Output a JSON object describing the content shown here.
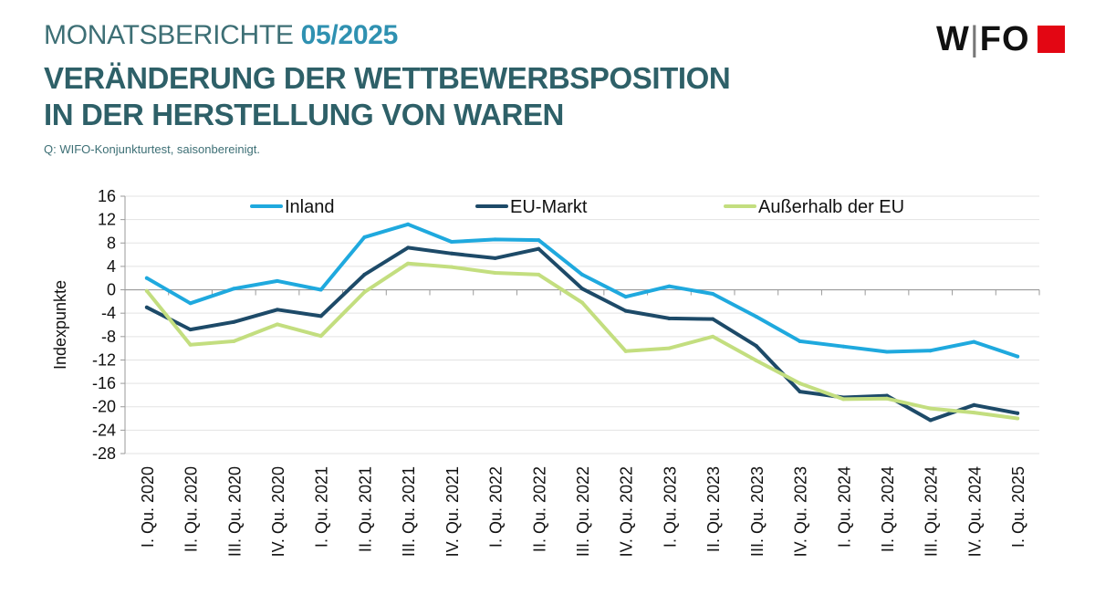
{
  "header": {
    "series_label": "MONATSBERICHTE",
    "issue": "05/2025",
    "title_line1": "VERÄNDERUNG DER WETTBEWERBSPOSITION",
    "title_line2": "IN DER HERSTELLUNG VON WAREN",
    "source": "Q: WIFO-Konjunkturtest, saisonbereinigt."
  },
  "logo": {
    "wordmark": "WIFO",
    "accent_color": "#e30613"
  },
  "chart_data": {
    "type": "line",
    "ylabel": "Indexpunkte",
    "xlabel": "",
    "ylim": [
      -28,
      16
    ],
    "yticks": [
      16,
      12,
      8,
      4,
      0,
      -4,
      -8,
      -12,
      -16,
      -20,
      -24,
      -28
    ],
    "grid": true,
    "legend_position": "top",
    "categories": [
      "I. Qu. 2020",
      "II. Qu. 2020",
      "III. Qu. 2020",
      "IV. Qu. 2020",
      "I. Qu. 2021",
      "II. Qu. 2021",
      "III. Qu. 2021",
      "IV. Qu. 2021",
      "I. Qu. 2022",
      "II. Qu. 2022",
      "III. Qu. 2022",
      "IV. Qu. 2022",
      "I. Qu. 2023",
      "II. Qu. 2023",
      "III. Qu. 2023",
      "IV. Qu. 2023",
      "I. Qu. 2024",
      "II. Qu. 2024",
      "III. Qu. 2024",
      "IV. Qu. 2024",
      "I. Qu. 2025"
    ],
    "series": [
      {
        "name": "Inland",
        "color": "#1fa9de",
        "values": [
          2.0,
          -2.3,
          0.2,
          1.5,
          0.0,
          9.0,
          11.2,
          8.2,
          8.6,
          8.5,
          2.6,
          -1.2,
          0.6,
          -0.7,
          -4.6,
          -8.8,
          -9.7,
          -10.6,
          -10.4,
          -8.9,
          -11.4
        ]
      },
      {
        "name": "EU-Markt",
        "color": "#1d4a68",
        "values": [
          -3.0,
          -6.8,
          -5.5,
          -3.4,
          -4.5,
          2.6,
          7.2,
          6.2,
          5.4,
          7.0,
          0.2,
          -3.6,
          -4.9,
          -5.0,
          -9.6,
          -17.4,
          -18.4,
          -18.1,
          -22.3,
          -19.7,
          -21.1
        ]
      },
      {
        "name": "Außerhalb der EU",
        "color": "#c3de7f",
        "values": [
          -0.2,
          -9.4,
          -8.8,
          -5.9,
          -7.9,
          -0.4,
          4.5,
          3.9,
          2.9,
          2.6,
          -2.2,
          -10.5,
          -10.0,
          -8.0,
          -12.1,
          -16.0,
          -18.7,
          -18.6,
          -20.3,
          -21.0,
          -22.0
        ]
      }
    ]
  }
}
